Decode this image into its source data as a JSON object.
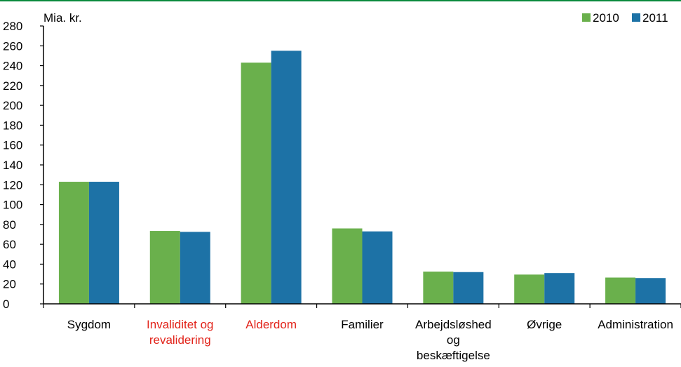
{
  "chart_data": {
    "type": "bar",
    "unit_label": "Mia. kr.",
    "categories": [
      "Sygdom",
      "Invaliditet og revalidering",
      "Alderdom",
      "Familier",
      "Arbejdsløshed og beskæftigelse",
      "Øvrige",
      "Administration"
    ],
    "category_lines": [
      [
        "Sygdom"
      ],
      [
        "Invaliditet og",
        "revalidering"
      ],
      [
        "Alderdom"
      ],
      [
        "Familier"
      ],
      [
        "Arbejdsløshed",
        "og",
        "beskæftigelse"
      ],
      [
        "Øvrige"
      ],
      [
        "Administration"
      ]
    ],
    "highlighted_categories": [
      "Invaliditet og revalidering",
      "Alderdom"
    ],
    "series": [
      {
        "name": "2010",
        "color": "#6ab04c",
        "values": [
          123,
          73.5,
          243,
          76,
          32.5,
          29.5,
          26.5
        ]
      },
      {
        "name": "2011",
        "color": "#1d72a6",
        "values": [
          123,
          72.5,
          255,
          73,
          32,
          31,
          26
        ]
      }
    ],
    "ylim": [
      0,
      280
    ],
    "yticks": [
      0,
      20,
      40,
      60,
      80,
      100,
      120,
      140,
      160,
      180,
      200,
      220,
      240,
      260,
      280
    ],
    "legend_position": "top-right",
    "grid": false,
    "highlight_color": "#e2231a",
    "frame_color": "#0a8a3c"
  }
}
